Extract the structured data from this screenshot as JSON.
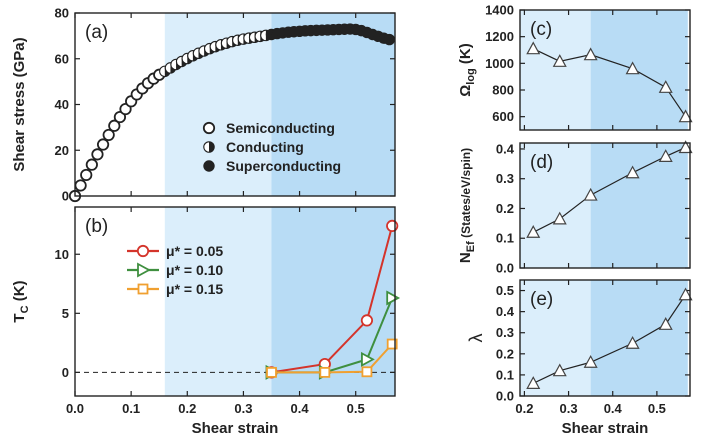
{
  "colors": {
    "region_light": "#dbeefb",
    "region_dark": "#b8dcf5",
    "axis": "#222222",
    "red": "#d4342b",
    "green": "#3f8f3f",
    "orange": "#f0a030",
    "triangle_stroke": "#444444"
  },
  "shade_regions": [
    {
      "from": 0.16,
      "to": 0.35,
      "shade": "light"
    },
    {
      "from": 0.35,
      "to": 0.57,
      "shade": "dark"
    }
  ],
  "chart_data": [
    {
      "id": "a",
      "type": "scatter",
      "panel_label": "(a)",
      "xlabel": "",
      "ylabel": "Shear stress (GPa)",
      "xlim": [
        0,
        0.57
      ],
      "ylim": [
        0,
        80
      ],
      "xticks": [
        0.0,
        0.1,
        0.2,
        0.3,
        0.4,
        0.5
      ],
      "xticklabels": [
        "",
        "",
        "",
        "",
        "",
        ""
      ],
      "yticks": [
        0,
        20,
        40,
        60,
        80
      ],
      "yticklabels": [
        "0",
        "20",
        "40",
        "60",
        "80"
      ],
      "legend": {
        "placement": "center-right",
        "entries": [
          {
            "label": "Semiconducting",
            "marker": "open-circle"
          },
          {
            "label": "Conducting",
            "marker": "half-circle"
          },
          {
            "label": "Superconducting",
            "marker": "filled-circle"
          }
        ]
      },
      "series": [
        {
          "marker": "open-circle",
          "x": [
            0.0,
            0.01,
            0.02,
            0.03,
            0.04,
            0.05,
            0.06,
            0.07,
            0.08,
            0.09,
            0.1,
            0.11,
            0.12,
            0.13,
            0.14,
            0.15
          ],
          "y": [
            0.0,
            4.6,
            9.2,
            13.7,
            18.2,
            22.5,
            26.7,
            30.7,
            34.5,
            38.0,
            41.4,
            44.4,
            47.0,
            49.3,
            51.3,
            53.0
          ]
        },
        {
          "marker": "half-circle",
          "x": [
            0.16,
            0.17,
            0.18,
            0.19,
            0.2,
            0.21,
            0.22,
            0.23,
            0.24,
            0.25,
            0.26,
            0.27,
            0.28,
            0.29,
            0.3,
            0.31,
            0.32,
            0.33,
            0.34
          ],
          "y": [
            54.5,
            56.0,
            57.5,
            58.8,
            60.1,
            61.3,
            62.4,
            63.4,
            64.4,
            65.3,
            66.1,
            66.8,
            67.5,
            68.1,
            68.6,
            69.0,
            69.4,
            69.8,
            70.2
          ]
        },
        {
          "marker": "filled-circle",
          "x": [
            0.35,
            0.36,
            0.37,
            0.38,
            0.39,
            0.4,
            0.41,
            0.42,
            0.43,
            0.44,
            0.45,
            0.46,
            0.47,
            0.48,
            0.49,
            0.5,
            0.51,
            0.52,
            0.53,
            0.54,
            0.55,
            0.56
          ],
          "y": [
            70.6,
            71.0,
            71.3,
            71.6,
            71.8,
            72.0,
            72.2,
            72.3,
            72.4,
            72.5,
            72.6,
            72.7,
            72.8,
            72.9,
            73.0,
            72.8,
            72.3,
            71.5,
            70.6,
            69.8,
            69.0,
            68.4
          ]
        }
      ]
    },
    {
      "id": "b",
      "type": "line",
      "panel_label": "(b)",
      "xlabel": "Shear strain",
      "ylabel": "T",
      "ylabel_sub": "C",
      "ylabel_suffix": " (K)",
      "xlim": [
        0,
        0.57
      ],
      "ylim": [
        -2,
        14
      ],
      "xticks": [
        0.0,
        0.1,
        0.2,
        0.3,
        0.4,
        0.5
      ],
      "xticklabels": [
        "0.0",
        "0.1",
        "0.2",
        "0.3",
        "0.4",
        "0.5"
      ],
      "yticks": [
        0,
        5,
        10
      ],
      "yticklabels": [
        "0",
        "5",
        "10"
      ],
      "reference_line": {
        "y": 0,
        "style": "dashed"
      },
      "legend": {
        "placement": "top-left",
        "entries": [
          {
            "label": "μ* = 0.05",
            "color": "#d4342b",
            "marker": "circle"
          },
          {
            "label": "μ* = 0.10",
            "color": "#3f8f3f",
            "marker": "triangle-right"
          },
          {
            "label": "μ* = 0.15",
            "color": "#f0a030",
            "marker": "square"
          }
        ]
      },
      "series": [
        {
          "name": "μ* = 0.05",
          "color": "#d4342b",
          "marker": "circle",
          "x": [
            0.35,
            0.445,
            0.52,
            0.565
          ],
          "y": [
            0.0,
            0.7,
            4.4,
            12.4
          ]
        },
        {
          "name": "μ* = 0.10",
          "color": "#3f8f3f",
          "marker": "triangle-right",
          "x": [
            0.35,
            0.445,
            0.52,
            0.565
          ],
          "y": [
            0.0,
            0.0,
            1.1,
            6.3
          ]
        },
        {
          "name": "μ* = 0.15",
          "color": "#f0a030",
          "marker": "square",
          "x": [
            0.35,
            0.445,
            0.52,
            0.565
          ],
          "y": [
            0.0,
            0.0,
            0.05,
            2.4
          ]
        }
      ]
    },
    {
      "id": "c",
      "type": "line",
      "panel_label": "(c)",
      "xlabel": "",
      "ylabel": "Ω",
      "ylabel_sub": "log",
      "ylabel_suffix": " (K)",
      "xlim": [
        0.19,
        0.575
      ],
      "ylim": [
        500,
        1400
      ],
      "xticks": [
        0.2,
        0.3,
        0.4,
        0.5
      ],
      "xticklabels": [
        "",
        "",
        "",
        ""
      ],
      "yticks": [
        600,
        800,
        1000,
        1200,
        1400
      ],
      "yticklabels": [
        "600",
        "800",
        "1000",
        "1200",
        "1400"
      ],
      "series": [
        {
          "x": [
            0.22,
            0.28,
            0.35,
            0.445,
            0.52,
            0.565
          ],
          "y": [
            1110,
            1015,
            1065,
            960,
            820,
            600
          ]
        }
      ]
    },
    {
      "id": "d",
      "type": "line",
      "panel_label": "(d)",
      "xlabel": "",
      "ylabel": "N",
      "ylabel_sub": "Ef",
      "ylabel_suffix": "  (States/eV/spin)",
      "xlim": [
        0.19,
        0.575
      ],
      "ylim": [
        0.0,
        0.42
      ],
      "xticks": [
        0.2,
        0.3,
        0.4,
        0.5
      ],
      "xticklabels": [
        "",
        "",
        "",
        ""
      ],
      "yticks": [
        0.0,
        0.1,
        0.2,
        0.3,
        0.4
      ],
      "yticklabels": [
        "0.0",
        "0.1",
        "0.2",
        "0.3",
        "0.4"
      ],
      "series": [
        {
          "x": [
            0.22,
            0.28,
            0.35,
            0.445,
            0.52,
            0.565
          ],
          "y": [
            0.12,
            0.165,
            0.245,
            0.32,
            0.375,
            0.405
          ]
        }
      ]
    },
    {
      "id": "e",
      "type": "line",
      "panel_label": "(e)",
      "xlabel": "Shear strain",
      "ylabel": "λ",
      "ylabel_sub": "",
      "ylabel_suffix": "",
      "xlim": [
        0.19,
        0.575
      ],
      "ylim": [
        0.0,
        0.55
      ],
      "xticks": [
        0.2,
        0.3,
        0.4,
        0.5
      ],
      "xticklabels": [
        "0.2",
        "0.3",
        "0.4",
        "0.5"
      ],
      "yticks": [
        0.0,
        0.1,
        0.2,
        0.3,
        0.4,
        0.5
      ],
      "yticklabels": [
        "0.0",
        "0.1",
        "0.2",
        "0.3",
        "0.4",
        "0.5"
      ],
      "series": [
        {
          "x": [
            0.22,
            0.28,
            0.35,
            0.445,
            0.52,
            0.565
          ],
          "y": [
            0.06,
            0.12,
            0.16,
            0.25,
            0.34,
            0.48
          ]
        }
      ]
    }
  ]
}
